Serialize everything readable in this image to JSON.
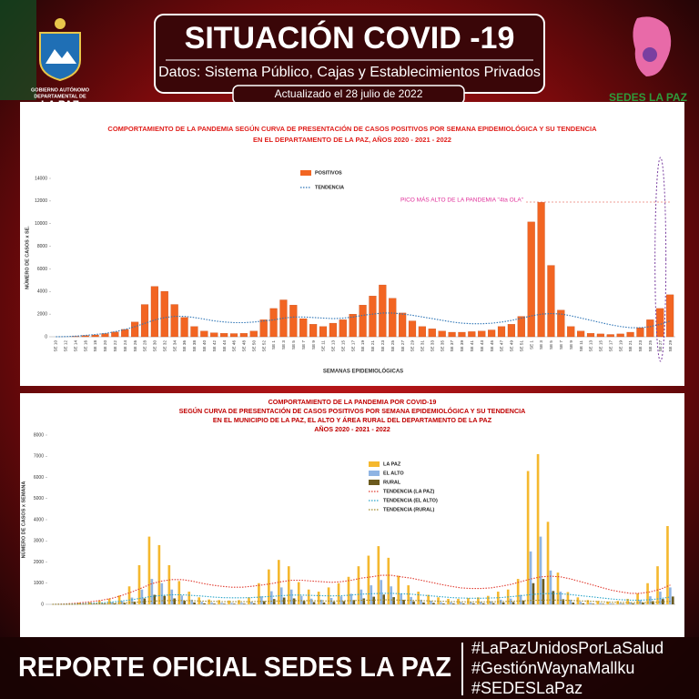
{
  "header": {
    "title": "SITUACIÓN COVID -19",
    "subtitle": "Datos: Sistema Público, Cajas y Establecimientos Privados",
    "updated": "Actualizado el  28  julio de 2022",
    "left_logo": [
      "GOBIERNO AUTÓNOMO",
      "DEPARTAMENTAL DE",
      "LA PAZ"
    ],
    "right_logo": "SEDES LA PAZ"
  },
  "footer": {
    "title": "REPORTE OFICIAL SEDES LA PAZ",
    "hashtags": [
      "#LaPazUnidosPorLaSalud",
      "#GestiónWaynaMallku",
      "#SEDESLaPaz"
    ]
  },
  "chart_data": [
    {
      "type": "bar",
      "title": [
        "COMPORTAMIENTO DE LA PANDEMIA SEGÚN CURVA DE PRESENTACIÓN DE CASOS POSITIVOS POR SEMANA EPIDEMIOLÓGICA Y SU TENDENCIA",
        "EN EL DEPARTAMENTO DE LA PAZ, AÑOS 2020 - 2021 - 2022"
      ],
      "ylabel": "NÚMERO DE CASOS x SE.",
      "xlabel": "SEMANAS EPIDEMIOLÓGICAS",
      "annotation": "PICO MÁS ALTO DE LA PANDEMIA \"4ta OLA\"",
      "categories": [
        "SE 10",
        "SE 12",
        "SE 14",
        "SE 16",
        "SE 18",
        "SE 20",
        "SE 22",
        "SE 24",
        "SE 26",
        "SE 28",
        "SE 30",
        "SE 32",
        "SE 34",
        "SE 36",
        "SE 38",
        "SE 40",
        "SE 42",
        "SE 44",
        "SE 46",
        "SE 48",
        "SE 50",
        "SE 52",
        "SE 1",
        "SE 3",
        "SE 5",
        "SE 7",
        "SE 9",
        "SE 11",
        "SE 13",
        "SE 15",
        "SE 17",
        "SE 19",
        "SE 21",
        "SE 23",
        "SE 25",
        "SE 27",
        "SE 29",
        "SE 31",
        "SE 33",
        "SE 35",
        "SE 37",
        "SE 39",
        "SE 41",
        "SE 43",
        "SE 45",
        "SE 47",
        "SE 49",
        "SE 51",
        "SE 1",
        "SE 3",
        "SE 5",
        "SE 7",
        "SE 9",
        "SE 11",
        "SE 13",
        "SE 15",
        "SE 17",
        "SE 19",
        "SE 21",
        "SE 23",
        "SE 25",
        "SE 27",
        "SE 29"
      ],
      "series": [
        {
          "name": "POSITIVOS",
          "color": "#f26522",
          "type": "bar",
          "values": [
            0,
            0,
            36,
            106,
            160,
            280,
            420,
            650,
            1300,
            2850,
            4449,
            4017,
            2853,
            1700,
            900,
            500,
            350,
            300,
            280,
            300,
            500,
            1500,
            2500,
            3258,
            2800,
            1600,
            1100,
            900,
            1200,
            1500,
            2000,
            2800,
            3600,
            4581,
            3400,
            2100,
            1400,
            900,
            700,
            500,
            400,
            400,
            450,
            500,
            600,
            900,
            1100,
            1800,
            10149,
            11877,
            6308,
            2353,
            900,
            500,
            300,
            250,
            200,
            250,
            400,
            800,
            1500,
            2500,
            3711
          ]
        },
        {
          "name": "TENDENCIA",
          "color": "#2e75b6",
          "type": "line",
          "values": [
            0,
            20,
            60,
            120,
            200,
            300,
            450,
            650,
            900,
            1200,
            1500,
            1700,
            1800,
            1800,
            1700,
            1550,
            1400,
            1300,
            1250,
            1250,
            1300,
            1400,
            1500,
            1650,
            1750,
            1750,
            1700,
            1650,
            1600,
            1650,
            1750,
            1900,
            2000,
            2100,
            2100,
            2000,
            1900,
            1750,
            1600,
            1450,
            1300,
            1200,
            1150,
            1150,
            1200,
            1300,
            1450,
            1650,
            1850,
            2000,
            2050,
            2000,
            1850,
            1650,
            1450,
            1250,
            1050,
            900,
            800,
            800,
            900,
            1100,
            1400
          ]
        }
      ],
      "ylim": [
        0,
        14000
      ],
      "yticks": [
        0,
        2000,
        4000,
        6000,
        8000,
        10000,
        12000,
        14000
      ],
      "legend": "top"
    },
    {
      "type": "bar",
      "title": [
        "COMPORTAMIENTO DE LA PANDEMIA POR COVID-19",
        "SEGÚN CURVA DE PRESENTACIÓN DE CASOS POSITIVOS POR SEMANA EPIDEMIOLÓGICA Y SU TENDENCIA",
        "EN EL  MUNICIPIO DE LA PAZ, EL ALTO Y ÁREA RURAL DEL DEPARTAMENTO DE LA PAZ",
        "AÑOS 2020 - 2021 - 2022"
      ],
      "ylabel": "NÚMERO DE CASOS x SEMANA",
      "series": [
        {
          "name": "LA PAZ",
          "color": "#f5b82e",
          "type": "bar",
          "values": [
            0,
            0,
            20,
            70,
            100,
            180,
            270,
            420,
            850,
            1850,
            3200,
            2800,
            1850,
            1100,
            600,
            330,
            230,
            200,
            180,
            200,
            330,
            1000,
            1650,
            2100,
            1800,
            1050,
            700,
            600,
            800,
            1000,
            1300,
            1800,
            2300,
            2750,
            2200,
            1350,
            900,
            600,
            450,
            330,
            260,
            260,
            300,
            330,
            400,
            600,
            700,
            1200,
            6300,
            7100,
            3900,
            1500,
            580,
            330,
            200,
            160,
            130,
            160,
            260,
            520,
            1000,
            1800,
            3700
          ]
        },
        {
          "name": "EL ALTO",
          "color": "#8fb4e3",
          "type": "bar",
          "values": [
            0,
            0,
            10,
            25,
            40,
            70,
            100,
            160,
            320,
            700,
            1200,
            1000,
            700,
            420,
            220,
            120,
            90,
            75,
            70,
            75,
            120,
            380,
            620,
            800,
            700,
            400,
            270,
            220,
            300,
            380,
            500,
            700,
            900,
            1150,
            850,
            520,
            350,
            220,
            170,
            100,
            100,
            100,
            110,
            120,
            150,
            220,
            270,
            450,
            2500,
            3200,
            1600,
            600,
            220,
            120,
            75,
            60,
            50,
            60,
            100,
            200,
            380,
            600,
            800
          ]
        },
        {
          "name": "RURAL",
          "color": "#6b5a1e",
          "type": "bar",
          "values": [
            0,
            0,
            5,
            10,
            15,
            30,
            40,
            60,
            130,
            280,
            450,
            400,
            280,
            170,
            90,
            50,
            35,
            30,
            30,
            30,
            50,
            150,
            250,
            320,
            280,
            160,
            110,
            90,
            120,
            150,
            200,
            280,
            360,
            460,
            340,
            210,
            140,
            90,
            70,
            40,
            40,
            40,
            45,
            50,
            60,
            90,
            110,
            180,
            1000,
            1200,
            630,
            240,
            90,
            50,
            30,
            25,
            20,
            25,
            40,
            80,
            150,
            250,
            370
          ]
        },
        {
          "name": "TENDENCIA (LA PAZ)",
          "color": "#e03a2f",
          "type": "line",
          "values": [
            0,
            15,
            40,
            80,
            130,
            200,
            290,
            420,
            590,
            780,
            980,
            1100,
            1170,
            1170,
            1100,
            1000,
            910,
            850,
            810,
            810,
            850,
            910,
            980,
            1070,
            1140,
            1140,
            1100,
            1070,
            1040,
            1070,
            1140,
            1240,
            1300,
            1370,
            1370,
            1300,
            1240,
            1140,
            1040,
            940,
            850,
            780,
            750,
            750,
            780,
            850,
            940,
            1070,
            1200,
            1300,
            1330,
            1300,
            1200,
            1070,
            940,
            810,
            680,
            590,
            520,
            520,
            590,
            720,
            910
          ]
        },
        {
          "name": "TENDENCIA (EL ALTO)",
          "color": "#2aa5c9",
          "type": "line",
          "values": [
            0,
            5,
            15,
            30,
            50,
            75,
            110,
            160,
            220,
            300,
            380,
            420,
            450,
            450,
            420,
            390,
            350,
            320,
            310,
            310,
            320,
            350,
            380,
            410,
            440,
            440,
            420,
            410,
            400,
            410,
            440,
            480,
            500,
            520,
            520,
            500,
            480,
            440,
            400,
            360,
            320,
            300,
            290,
            290,
            300,
            320,
            360,
            410,
            460,
            500,
            510,
            500,
            460,
            410,
            360,
            310,
            260,
            220,
            200,
            200,
            220,
            270,
            350
          ]
        },
        {
          "name": "TENDENCIA (RURAL)",
          "color": "#a08a2a",
          "type": "line",
          "values": [
            0,
            2,
            6,
            12,
            20,
            30,
            45,
            65,
            90,
            120,
            150,
            170,
            180,
            180,
            170,
            155,
            140,
            130,
            125,
            125,
            130,
            140,
            150,
            165,
            175,
            175,
            170,
            165,
            160,
            165,
            175,
            190,
            200,
            210,
            210,
            200,
            190,
            175,
            160,
            145,
            130,
            120,
            115,
            115,
            120,
            130,
            145,
            165,
            185,
            200,
            205,
            200,
            185,
            165,
            145,
            125,
            105,
            90,
            80,
            80,
            90,
            110,
            140
          ]
        }
      ],
      "ylim": [
        0,
        8000
      ],
      "yticks": [
        0,
        1000,
        2000,
        3000,
        4000,
        5000,
        6000,
        7000,
        8000
      ],
      "legend": "top-left"
    }
  ]
}
